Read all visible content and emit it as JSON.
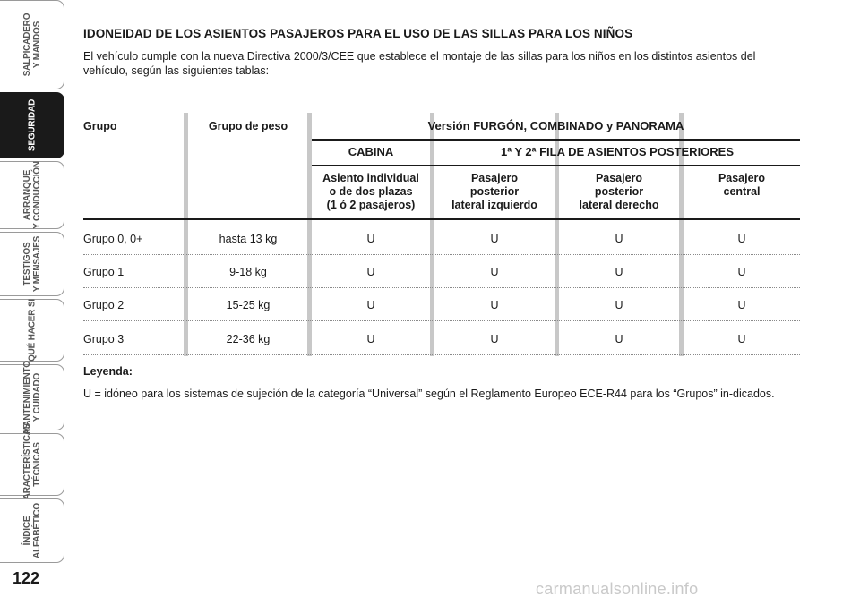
{
  "sidebar": {
    "tabs": [
      {
        "line1": "SALPICADERO",
        "line2": "Y MANDOS",
        "active": false
      },
      {
        "line1": "SEGURIDAD",
        "line2": "",
        "active": true
      },
      {
        "line1": "ARRANQUE",
        "line2": "Y CONDUCCIÓN",
        "active": false
      },
      {
        "line1": "TESTIGOS",
        "line2": "Y MENSAJES",
        "active": false
      },
      {
        "line1": "QUÉ HACER SI",
        "line2": "",
        "active": false
      },
      {
        "line1": "MANTENIMIENTO",
        "line2": "Y CUIDADO",
        "active": false
      },
      {
        "line1": "CARACTERÍSTICAS",
        "line2": "TÉCNICAS",
        "active": false
      },
      {
        "line1": "ÍNDICE",
        "line2": "ALFABÉTICO",
        "active": false
      }
    ]
  },
  "page_number": "122",
  "heading": "IDONEIDAD DE LOS ASIENTOS PASAJEROS PARA EL USO DE LAS SILLAS PARA LOS NIÑOS",
  "intro": "El vehículo cumple con la nueva Directiva 2000/3/CEE que establece el montaje de las sillas para los niños en los distintos asientos del vehículo, según las siguientes tablas:",
  "table": {
    "col_grupo": "Grupo",
    "col_peso": "Grupo de peso",
    "version_prefix": "Versión",
    "version_name": "FURGÓN, COMBINADO y PANORAMA",
    "cabina": "CABINA",
    "filas": "1ª Y 2ª FILA DE ASIENTOS POSTERIORES",
    "sub": [
      [
        "Asiento individual",
        "o de dos plazas",
        "(1 ó 2 pasajeros)"
      ],
      [
        "Pasajero",
        "posterior",
        "lateral izquierdo"
      ],
      [
        "Pasajero",
        "posterior",
        "lateral derecho"
      ],
      [
        "Pasajero",
        "central",
        ""
      ]
    ],
    "rows": [
      {
        "grupo": "Grupo 0, 0+",
        "peso": "hasta 13 kg",
        "values": [
          "U",
          "U",
          "U",
          "U"
        ]
      },
      {
        "grupo": "Grupo 1",
        "peso": "9-18 kg",
        "values": [
          "U",
          "U",
          "U",
          "U"
        ]
      },
      {
        "grupo": "Grupo 2",
        "peso": "15-25 kg",
        "values": [
          "U",
          "U",
          "U",
          "U"
        ]
      },
      {
        "grupo": "Grupo 3",
        "peso": "22-36 kg",
        "values": [
          "U",
          "U",
          "U",
          "U"
        ]
      }
    ]
  },
  "legend": {
    "title": "Leyenda:",
    "text": "U = idóneo para los sistemas de sujeción de la categoría “Universal” según el Reglamento Europeo ECE-R44 para los “Grupos” in-dicados."
  },
  "watermark": "carmanualsonline.info"
}
